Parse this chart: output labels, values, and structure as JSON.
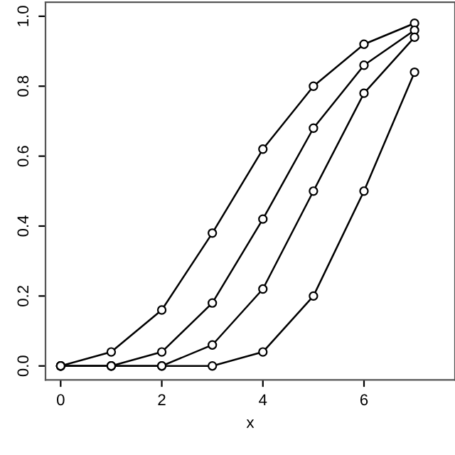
{
  "chart_data": {
    "type": "line",
    "xlabel": "x",
    "x": [
      0,
      1,
      2,
      3,
      4,
      5,
      6,
      7
    ],
    "series": [
      {
        "color": "#000000",
        "values": [
          0,
          0.04,
          0.16,
          0.38,
          0.62,
          0.8,
          0.92,
          0.98
        ]
      },
      {
        "color": "#000000",
        "values": [
          0,
          0,
          0.04,
          0.18,
          0.42,
          0.68,
          0.86,
          0.96
        ]
      },
      {
        "color": "#000000",
        "values": [
          0,
          0,
          0,
          0.06,
          0.22,
          0.5,
          0.78,
          0.94
        ]
      },
      {
        "color": "#000000",
        "values": [
          0,
          0,
          0,
          0,
          0.04,
          0.2,
          0.5,
          0.84
        ]
      }
    ],
    "xlim": [
      -0.3,
      7.8
    ],
    "xticks": [
      0,
      2,
      4,
      6
    ],
    "ylim": [
      -0.04,
      1.04
    ],
    "yticks": [
      {
        "value": 0,
        "label": "0.0"
      },
      {
        "value": 0.2,
        "label": "0.2"
      },
      {
        "value": 0.4,
        "label": "0.4"
      },
      {
        "value": 0.6,
        "label": "0.6"
      },
      {
        "value": 0.8,
        "label": "0.8"
      },
      {
        "value": 1.0,
        "label": "1.0"
      }
    ],
    "marker": "circle",
    "line_style": "solid",
    "grid": false,
    "legend": false
  }
}
